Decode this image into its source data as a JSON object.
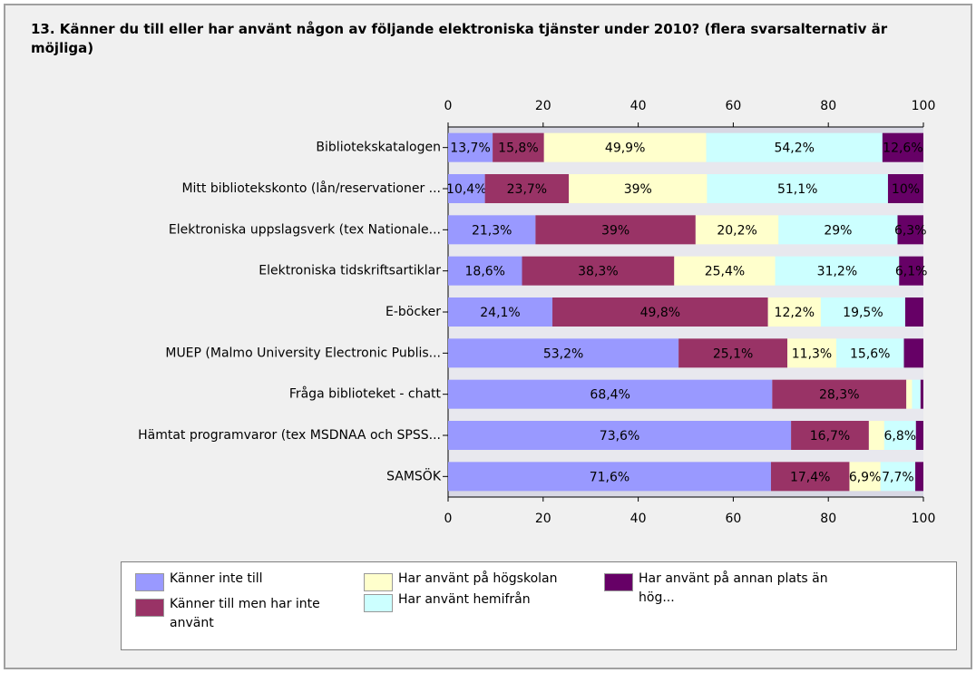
{
  "chart_data": {
    "type": "bar",
    "orientation": "horizontal",
    "stacking": "percent",
    "title": "13. Känner du till eller har använt någon av följande elektroniska tjänster under 2010? (flera svarsalternativ är möjliga)",
    "categories": [
      "Bibliotekskatalogen",
      "Mitt bibliotekskonto (lån/reservationer ...",
      "Elektroniska uppslagsverk (tex Nationale...",
      "Elektroniska tidskriftsartiklar",
      "E-böcker",
      "MUEP (Malmo University Electronic Publis...",
      "Fråga biblioteket - chatt",
      "Hämtat programvaror (tex MSDNAA och SPSS...",
      "SAMSÖK"
    ],
    "series": [
      {
        "name": "Känner inte till",
        "color": "#9999ff",
        "values": [
          13.7,
          10.4,
          21.3,
          18.6,
          24.1,
          53.2,
          68.4,
          73.6,
          71.6
        ],
        "value_labels": [
          "13,7%",
          "10,4%",
          "21,3%",
          "18,6%",
          "24,1%",
          "53,2%",
          "68,4%",
          "73,6%",
          "71,6%"
        ]
      },
      {
        "name": "Känner till men har inte använt",
        "color": "#993366",
        "values": [
          15.8,
          23.7,
          39,
          38.3,
          49.8,
          25.1,
          28.3,
          16.7,
          17.4
        ],
        "value_labels": [
          "15,8%",
          "23,7%",
          "39%",
          "38,3%",
          "49,8%",
          "25,1%",
          "28,3%",
          "16,7%",
          "17,4%"
        ]
      },
      {
        "name": "Har använt på högskolan",
        "color": "#ffffcc",
        "values": [
          49.9,
          39,
          20.2,
          25.4,
          12.2,
          11.3,
          1.2,
          3.3,
          6.9
        ],
        "value_labels": [
          "49,9%",
          "39%",
          "20,2%",
          "25,4%",
          "12,2%",
          "11,3%",
          null,
          null,
          "6,9%"
        ]
      },
      {
        "name": "Har använt hemifrån",
        "color": "#ccffff",
        "values": [
          54.2,
          51.1,
          29,
          31.2,
          19.5,
          15.6,
          1.8,
          6.8,
          7.7
        ],
        "value_labels": [
          "54,2%",
          "51,1%",
          "29%",
          "31,2%",
          "19,5%",
          "15,6%",
          null,
          "6,8%",
          "7,7%"
        ]
      },
      {
        "name": "Har använt på annan plats än hög...",
        "color": "#660066",
        "values": [
          12.6,
          10,
          6.3,
          6.1,
          4.2,
          4.5,
          0.6,
          1.6,
          1.8
        ],
        "value_labels": [
          "12,6%",
          "10%",
          "6,3%",
          "6,1%",
          null,
          null,
          null,
          null,
          null
        ]
      }
    ],
    "xlim": [
      0,
      100
    ],
    "xticks": [
      0,
      20,
      40,
      60,
      80,
      100
    ]
  }
}
